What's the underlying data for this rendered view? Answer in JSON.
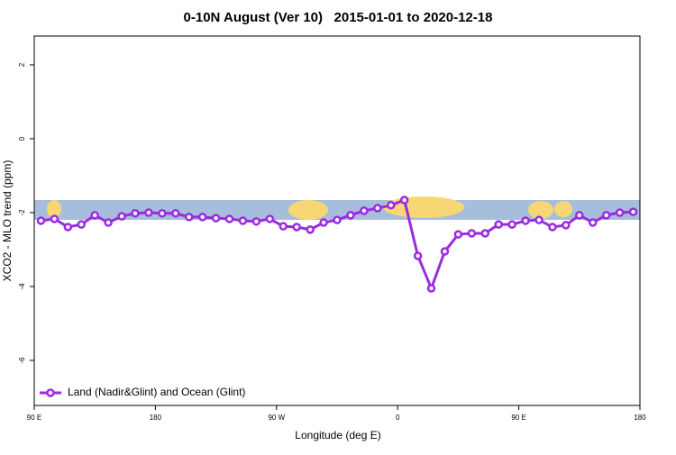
{
  "chart_data": {
    "type": "line",
    "title": "0-10N August (Ver 10)   2015-01-01 to 2020-12-18",
    "xlabel": "Longitude (deg E)",
    "ylabel": "XCO2 - MLO trend (ppm)",
    "x": [
      95,
      105,
      115,
      125,
      135,
      145,
      155,
      165,
      175,
      185,
      195,
      205,
      215,
      225,
      235,
      245,
      255,
      265,
      275,
      285,
      295,
      305,
      315,
      325,
      335,
      345,
      355,
      365,
      375,
      385,
      395,
      405,
      415,
      425,
      435,
      445,
      455,
      465,
      475,
      485,
      495,
      505,
      515,
      525,
      535
    ],
    "series": [
      {
        "name": "Land (Nadir&Glint) and Ocean (Glint)",
        "color": "#9a2be2",
        "values": [
          -2.22,
          -2.17,
          -2.39,
          -2.32,
          -2.07,
          -2.27,
          -2.1,
          -2.02,
          -2.0,
          -2.02,
          -2.02,
          -2.12,
          -2.12,
          -2.15,
          -2.17,
          -2.22,
          -2.24,
          -2.17,
          -2.37,
          -2.39,
          -2.46,
          -2.27,
          -2.2,
          -2.07,
          -1.95,
          -1.88,
          -1.8,
          -1.66,
          -3.17,
          -4.05,
          -3.05,
          -2.59,
          -2.56,
          -2.56,
          -2.32,
          -2.32,
          -2.22,
          -2.2,
          -2.39,
          -2.34,
          -2.07,
          -2.27,
          -2.07,
          -2.0,
          -1.98
        ]
      }
    ],
    "xlim": [
      90,
      540
    ],
    "xticks": [
      {
        "value": 90,
        "label": "90 E"
      },
      {
        "value": 180,
        "label": "180"
      },
      {
        "value": 270,
        "label": "90 W"
      },
      {
        "value": 360,
        "label": "0"
      },
      {
        "value": 450,
        "label": "90 E"
      },
      {
        "value": 540,
        "label": "180"
      }
    ],
    "ylim": [
      -7.22,
      2.78
    ],
    "yticks": [
      -6,
      -4,
      -2,
      0,
      2
    ],
    "legend": "bottom-left"
  }
}
